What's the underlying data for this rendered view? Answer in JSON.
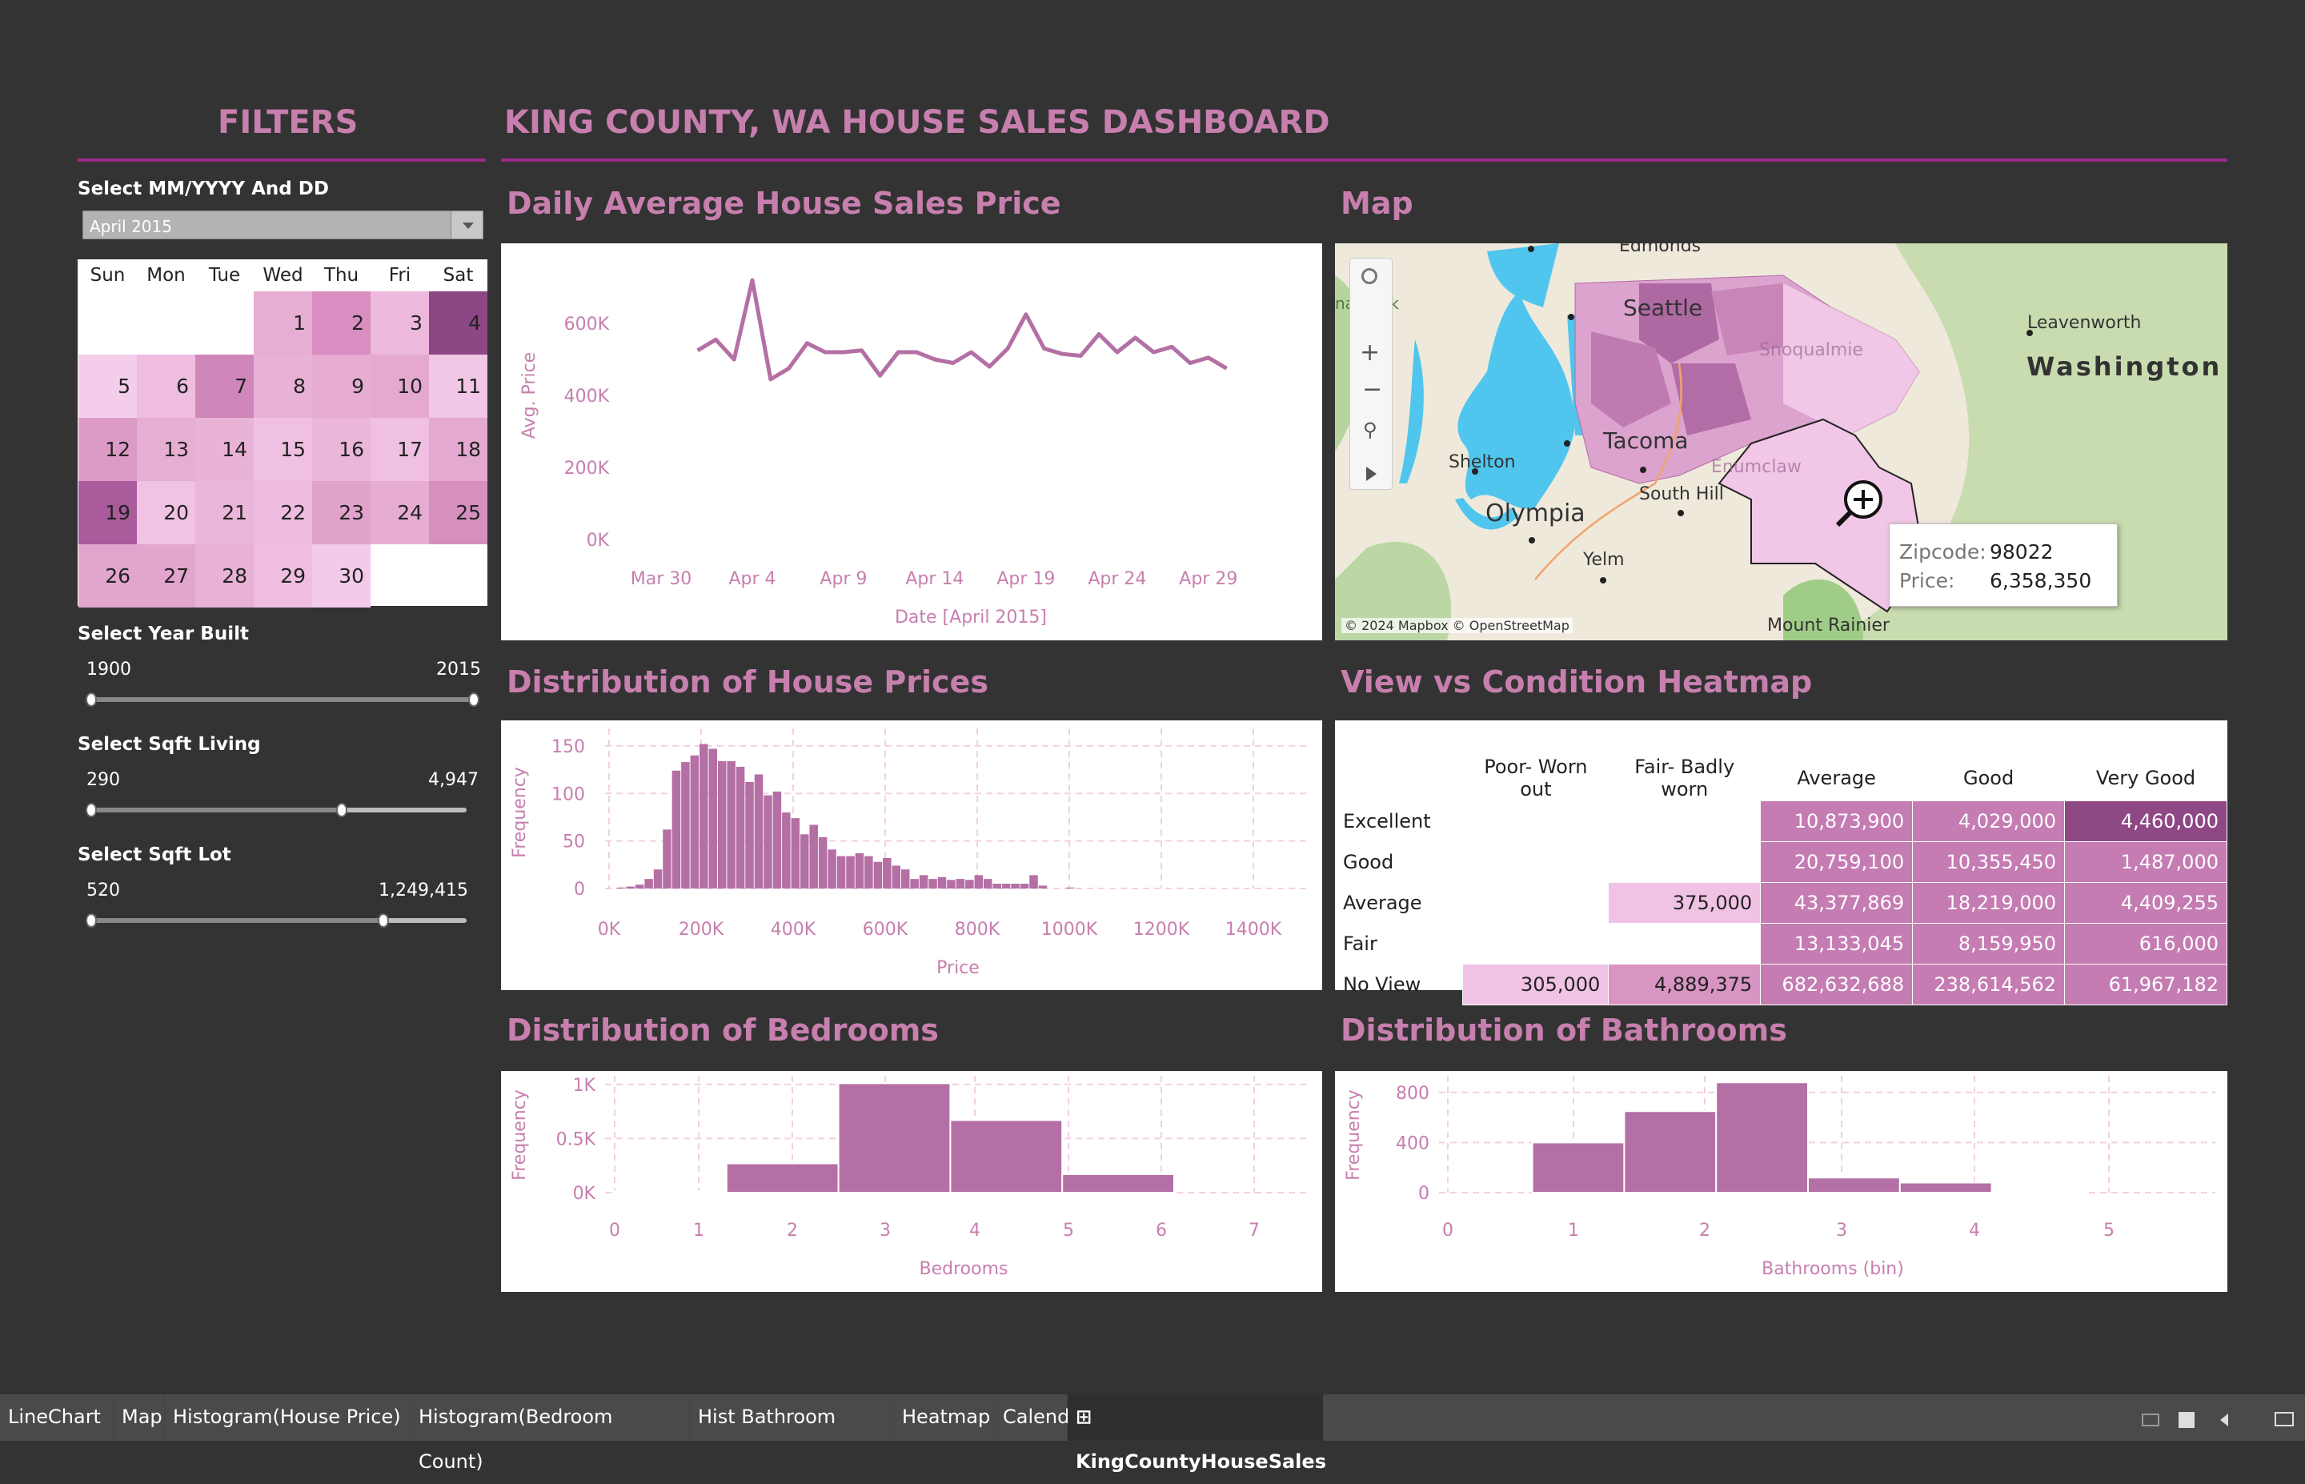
{
  "filters": {
    "title": "FILTERS",
    "month_label": "Select MM/YYYY And DD",
    "month_value": "April 2015",
    "year_label": "Select Year Built",
    "year_min": "1900",
    "year_max": "2015",
    "year_fraction": 1.0,
    "sqft_living_label": "Select Sqft Living",
    "sqft_living_min": "290",
    "sqft_living_max": "4,947",
    "sqft_living_fraction": 0.67,
    "sqft_lot_label": "Select Sqft Lot",
    "sqft_lot_min": "520",
    "sqft_lot_max": "1,249,415",
    "sqft_lot_fraction": 0.78
  },
  "calendar": {
    "days": [
      "Sun",
      "Mon",
      "Tue",
      "Wed",
      "Thu",
      "Fri",
      "Sat"
    ],
    "dates": [
      {
        "d": "1",
        "c": "#e7aed3"
      },
      {
        "d": "2",
        "c": "#d88ec0"
      },
      {
        "d": "3",
        "c": "#ecb8db"
      },
      {
        "d": "4",
        "c": "#8c4784"
      },
      {
        "d": "5",
        "c": "#f4cdea"
      },
      {
        "d": "6",
        "c": "#eebde0"
      },
      {
        "d": "7",
        "c": "#cf86b9"
      },
      {
        "d": "8",
        "c": "#e8b1d6"
      },
      {
        "d": "9",
        "c": "#e6acd2"
      },
      {
        "d": "10",
        "c": "#e5a9d0"
      },
      {
        "d": "11",
        "c": "#f1c6e6"
      },
      {
        "d": "12",
        "c": "#dc9bc7"
      },
      {
        "d": "13",
        "c": "#e7aed3"
      },
      {
        "d": "14",
        "c": "#e9b3d8"
      },
      {
        "d": "15",
        "c": "#efc0e2"
      },
      {
        "d": "16",
        "c": "#eab6d9"
      },
      {
        "d": "17",
        "c": "#efc0e2"
      },
      {
        "d": "18",
        "c": "#e4a9d0"
      },
      {
        "d": "19",
        "c": "#a95b9b"
      },
      {
        "d": "20",
        "c": "#f0c3e4"
      },
      {
        "d": "21",
        "c": "#eab6d9"
      },
      {
        "d": "22",
        "c": "#edbce0"
      },
      {
        "d": "23",
        "c": "#e1a3cc"
      },
      {
        "d": "24",
        "c": "#e6acd2"
      },
      {
        "d": "25",
        "c": "#d690c0"
      },
      {
        "d": "26",
        "c": "#e2a5ce"
      },
      {
        "d": "27",
        "c": "#e2a5ce"
      },
      {
        "d": "28",
        "c": "#e8b2d6"
      },
      {
        "d": "29",
        "c": "#eebde0"
      },
      {
        "d": "30",
        "c": "#f3cae9"
      }
    ]
  },
  "dashboard": {
    "title": "KING COUNTY, WA HOUSE SALES DASHBOARD",
    "line_title": "Daily Average House Sales Price",
    "map_title": "Map",
    "hist_title": "Distribution of House Prices",
    "heat_title": "View vs Condition Heatmap",
    "bed_title": "Distribution of Bedrooms",
    "bath_title": "Distribution of Bathrooms"
  },
  "map": {
    "labels": [
      "Edmonds",
      "Seattle",
      "Leavenworth",
      "Washington",
      "Tacoma",
      "Shelton",
      "Olympia",
      "South Hill",
      "Yelm",
      "Mount Rainier",
      "nal Park",
      "Snoqualmie",
      "Enumclaw"
    ],
    "tooltip_zip_label": "Zipcode:",
    "tooltip_zip": "98022",
    "tooltip_price_label": "Price:",
    "tooltip_price": "6,358,350",
    "attribution": "© 2024 Mapbox © OpenStreetMap"
  },
  "heatmap": {
    "cols": [
      "Poor- Worn out",
      "Fair- Badly worn",
      "Average",
      "Good",
      "Very Good"
    ],
    "rows": [
      {
        "label": "Excellent",
        "cells": [
          "",
          "",
          "10,873,900",
          "4,029,000",
          "4,460,000"
        ]
      },
      {
        "label": "Good",
        "cells": [
          "",
          "",
          "20,759,100",
          "10,355,450",
          "1,487,000"
        ]
      },
      {
        "label": "Average",
        "cells": [
          "",
          "375,000",
          "43,377,869",
          "18,219,000",
          "4,409,255"
        ]
      },
      {
        "label": "Fair",
        "cells": [
          "",
          "",
          "13,133,045",
          "8,159,950",
          "616,000"
        ]
      },
      {
        "label": "No View",
        "cells": [
          "305,000",
          "4,889,375",
          "682,632,688",
          "238,614,562",
          "61,967,182"
        ]
      }
    ],
    "colors": [
      [
        "",
        "",
        "#c47cb3",
        "#c47cb3",
        "#8f4886"
      ],
      [
        "",
        "",
        "#c47cb3",
        "#c47cb3",
        "#c47cb3"
      ],
      [
        "",
        "#f0c3e4",
        "#c47cb3",
        "#c47cb3",
        "#c47cb3"
      ],
      [
        "",
        "",
        "#c47cb3",
        "#c47cb3",
        "#c47cb3"
      ],
      [
        "#f0c3e4",
        "#d894c3",
        "#c47cb3",
        "#c47cb3",
        "#c47cb3"
      ]
    ]
  },
  "chart_data": [
    {
      "type": "line",
      "title": "Daily Average House Sales Price",
      "xlabel": "Date [April 2015]",
      "ylabel": "Avg. Price",
      "x_ticks": [
        "Mar 30",
        "Apr 4",
        "Apr 9",
        "Apr 14",
        "Apr 19",
        "Apr 24",
        "Apr 29"
      ],
      "y_ticks": [
        "0K",
        "200K",
        "400K",
        "600K"
      ],
      "ylim": [
        0,
        700000
      ],
      "x": [
        "Apr 1",
        "Apr 2",
        "Apr 3",
        "Apr 4",
        "Apr 5",
        "Apr 6",
        "Apr 7",
        "Apr 8",
        "Apr 9",
        "Apr 10",
        "Apr 11",
        "Apr 12",
        "Apr 13",
        "Apr 14",
        "Apr 15",
        "Apr 16",
        "Apr 17",
        "Apr 18",
        "Apr 19",
        "Apr 20",
        "Apr 21",
        "Apr 22",
        "Apr 23",
        "Apr 24",
        "Apr 25",
        "Apr 26",
        "Apr 27",
        "Apr 28",
        "Apr 29",
        "Apr 30"
      ],
      "values": [
        525000,
        555000,
        500000,
        720000,
        445000,
        475000,
        545000,
        520000,
        520000,
        525000,
        455000,
        520000,
        520000,
        500000,
        490000,
        520000,
        480000,
        530000,
        625000,
        530000,
        515000,
        510000,
        570000,
        520000,
        560000,
        520000,
        535000,
        490000,
        505000,
        475000
      ]
    },
    {
      "type": "bar",
      "title": "Distribution of House Prices",
      "xlabel": "Price",
      "ylabel": "Frequency",
      "x_ticks": [
        "0K",
        "200K",
        "400K",
        "600K",
        "800K",
        "1000K",
        "1200K",
        "1400K"
      ],
      "y_ticks": [
        "0",
        "50",
        "100",
        "150"
      ],
      "ylim": [
        0,
        160
      ],
      "bin_width": 50000,
      "bin_start": 50000,
      "values": [
        1,
        2,
        4,
        10,
        20,
        62,
        124,
        133,
        140,
        152,
        147,
        134,
        134,
        128,
        112,
        120,
        98,
        102,
        80,
        74,
        57,
        67,
        54,
        41,
        34,
        34,
        37,
        34,
        28,
        32,
        24,
        20,
        10,
        14,
        10,
        12,
        9,
        10,
        9,
        14,
        10,
        5,
        5,
        5,
        5,
        14,
        3,
        0,
        0,
        1
      ]
    },
    {
      "type": "bar",
      "title": "Distribution of Bedrooms",
      "xlabel": "Bedrooms",
      "ylabel": "Frequency",
      "x_ticks": [
        "0",
        "1",
        "2",
        "3",
        "4",
        "5",
        "6",
        "7"
      ],
      "y_ticks": [
        "0K",
        "0.5K",
        "1K"
      ],
      "ylim": [
        0,
        1050
      ],
      "bins": [
        [
          0,
          1.2,
          10
        ],
        [
          1.2,
          2.4,
          270
        ],
        [
          2.4,
          3.6,
          1010
        ],
        [
          3.6,
          4.8,
          670
        ],
        [
          4.8,
          6.0,
          170
        ]
      ]
    },
    {
      "type": "bar",
      "title": "Distribution of Bathrooms",
      "xlabel": "Bathrooms (bin)",
      "ylabel": "Frequency",
      "x_ticks": [
        "0",
        "1",
        "2",
        "3",
        "4",
        "5"
      ],
      "y_ticks": [
        "0",
        "400",
        "800"
      ],
      "ylim": [
        0,
        920
      ],
      "bins": [
        [
          0.65,
          1.35,
          400
        ],
        [
          1.35,
          2.05,
          650
        ],
        [
          2.05,
          2.75,
          880
        ],
        [
          2.75,
          3.45,
          120
        ],
        [
          3.45,
          4.15,
          80
        ],
        [
          4.15,
          4.85,
          6
        ]
      ]
    }
  ],
  "tabs": [
    "LineChart",
    "Map",
    "Histogram(House Price)",
    "Histogram(Bedroom Count)",
    "Hist Bathroom",
    "Heatmap",
    "Calendar",
    "KingCountyHouseSales"
  ]
}
